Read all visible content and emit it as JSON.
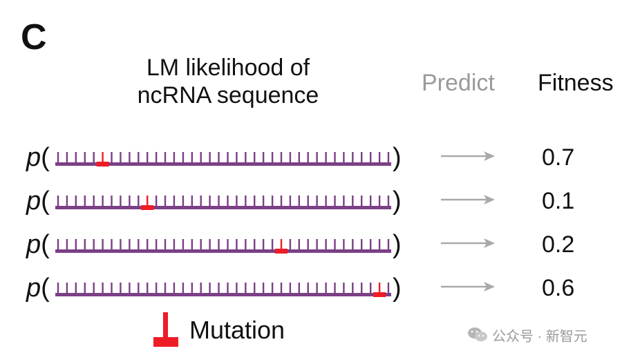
{
  "figure": {
    "panel_label": "C",
    "header_line1": "LM likelihood of",
    "header_line2": "ncRNA sequence",
    "predict_label": "Predict",
    "fitness_label": "Fitness",
    "p_symbol": "p",
    "open_paren": "(",
    "close_paren": ")",
    "rows": [
      {
        "mutation_index": 5,
        "fitness": "0.7"
      },
      {
        "mutation_index": 10,
        "fitness": "0.1"
      },
      {
        "mutation_index": 25,
        "fitness": "0.2"
      },
      {
        "mutation_index": 36,
        "fitness": "0.6"
      }
    ],
    "legend_label": "Mutation"
  },
  "watermark": {
    "text": "公众号 · 新智元",
    "icon": "wechat-icon"
  },
  "colors": {
    "sequence": "#7b3f86",
    "mutation": "#ee1c25",
    "arrow": "#a9a9a9",
    "predict": "#9a9a9a"
  },
  "sequence_tick_count": 38
}
